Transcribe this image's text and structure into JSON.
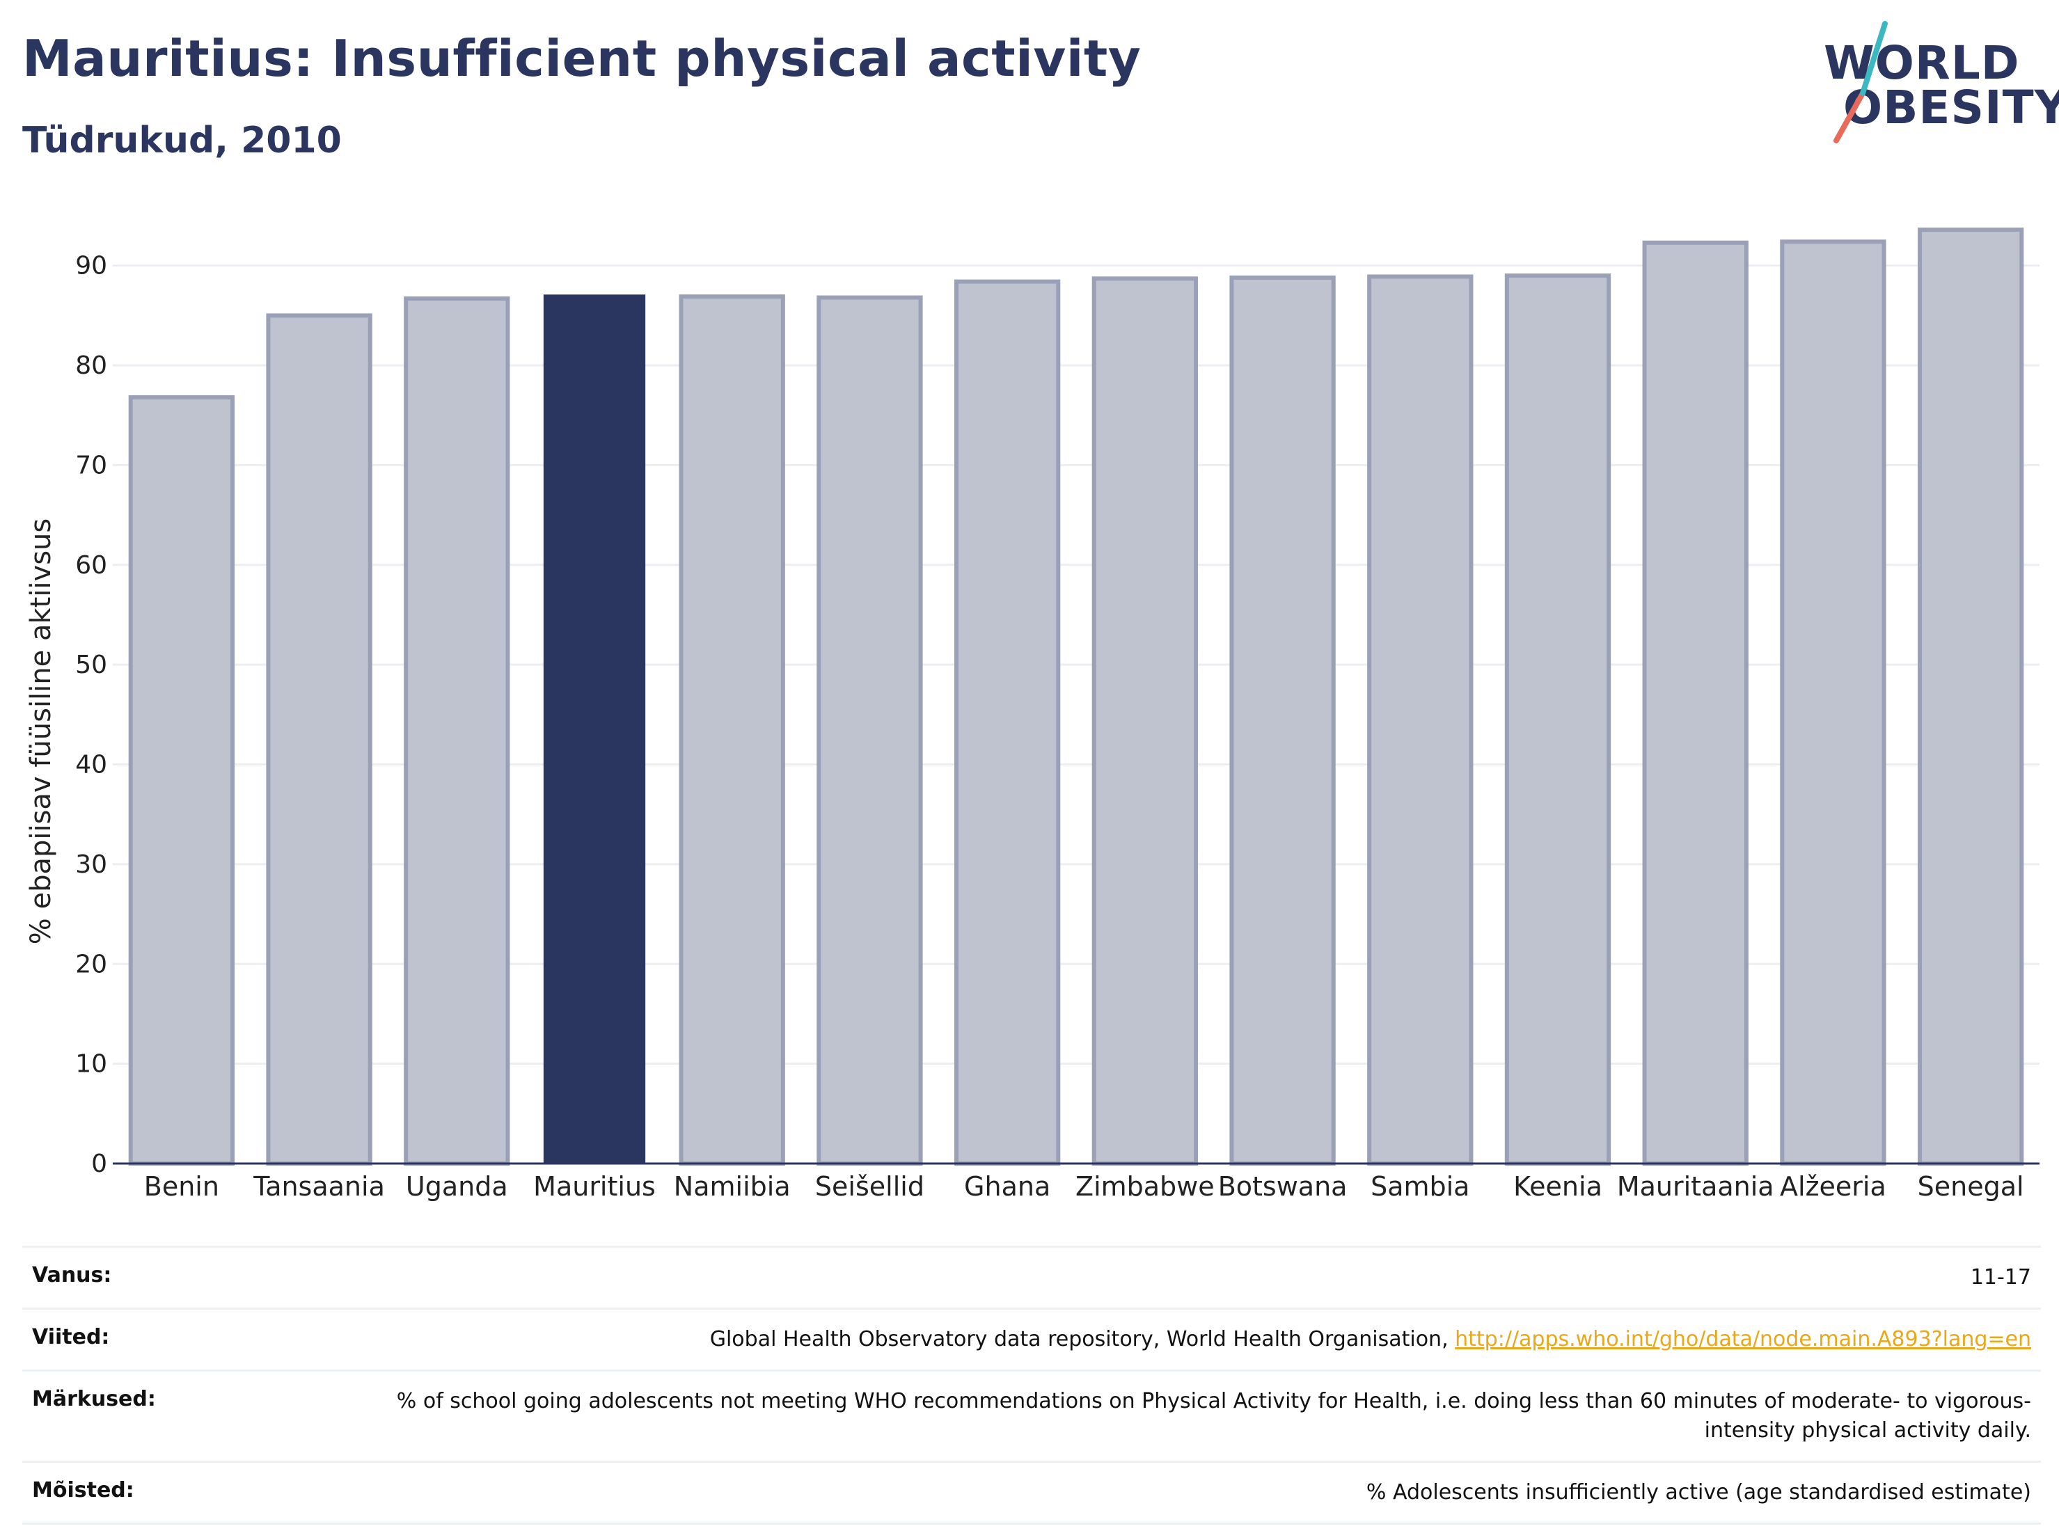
{
  "header": {
    "title": "Mauritius: Insufficient physical activity",
    "subtitle": "Tüdrukud, 2010"
  },
  "logo": {
    "line1": "WORLD",
    "line2": "OBESITY"
  },
  "chart_data": {
    "type": "bar",
    "categories": [
      "Benin",
      "Tansaania",
      "Uganda",
      "Mauritius",
      "Namiibia",
      "Seišellid",
      "Ghana",
      "Zimbabwe",
      "Botswana",
      "Sambia",
      "Keenia",
      "Mauritaania",
      "Alžeeria",
      "Senegal"
    ],
    "values": [
      76.8,
      85.0,
      86.7,
      87.1,
      86.9,
      86.8,
      88.4,
      88.7,
      88.8,
      88.9,
      89.0,
      92.3,
      92.4,
      93.6
    ],
    "highlight": "Mauritius",
    "ylabel": "% ebapiisav füüsiline aktiivsus",
    "xlabel": "",
    "ylim": [
      0,
      95
    ],
    "yticks": [
      0,
      10,
      20,
      30,
      40,
      50,
      60,
      70,
      80,
      90
    ],
    "grid": true,
    "colors": {
      "bar": "#bfc2cf",
      "bar_border": "#9aa0b6",
      "highlight": "#2a3560",
      "grid": "#eceef2",
      "axis": "#2a3560"
    }
  },
  "footer": {
    "rows": [
      {
        "label": "Vanus:",
        "value": "11-17"
      },
      {
        "label": "Viited:",
        "value": "Global Health Observatory data repository, World Health Organisation, ",
        "link": "http://apps.who.int/gho/data/node.main.A893?lang=en"
      },
      {
        "label": "Märkused:",
        "value": "% of school going adolescents not meeting WHO recommendations on Physical Activity for Health, i.e. doing less than 60 minutes of moderate- to vigorous-intensity physical activity daily."
      },
      {
        "label": "Mõisted:",
        "value": "% Adolescents insufficiently active (age standardised estimate)"
      }
    ]
  }
}
